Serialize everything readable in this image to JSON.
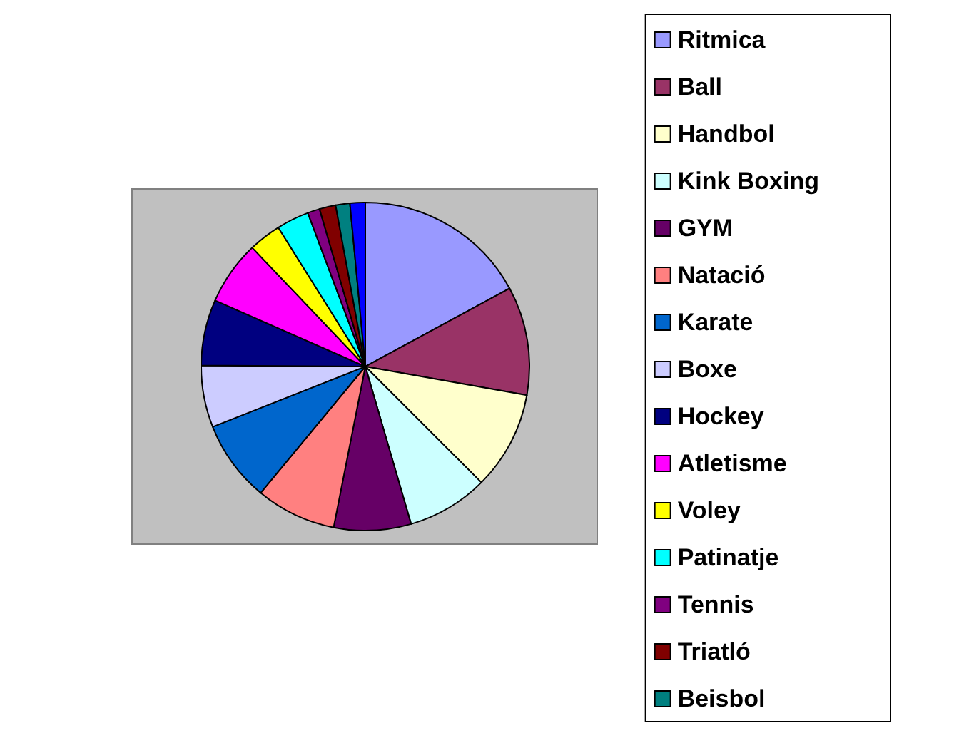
{
  "chart_data": {
    "type": "pie",
    "categories": [
      "Ritmica",
      "Ball",
      "Handbol",
      "Kink Boxing",
      "GYM",
      "Natació",
      "Karate",
      "Boxe",
      "Hockey",
      "Atletisme",
      "Voley",
      "Patinatje",
      "Tennis",
      "Triatló",
      "Beisbol",
      null
    ],
    "values": [
      17.1,
      10.7,
      9.7,
      8.0,
      7.6,
      7.9,
      8.0,
      6.1,
      6.5,
      6.3,
      3.2,
      3.2,
      1.2,
      1.6,
      1.4,
      1.5
    ],
    "colors": [
      "#9999ff",
      "#993366",
      "#ffffcc",
      "#ccffff",
      "#660066",
      "#ff8080",
      "#0066cc",
      "#ccccff",
      "#000080",
      "#ff00ff",
      "#ffff00",
      "#00ffff",
      "#800080",
      "#800000",
      "#008080",
      "#0000ff"
    ],
    "legend": "right"
  }
}
